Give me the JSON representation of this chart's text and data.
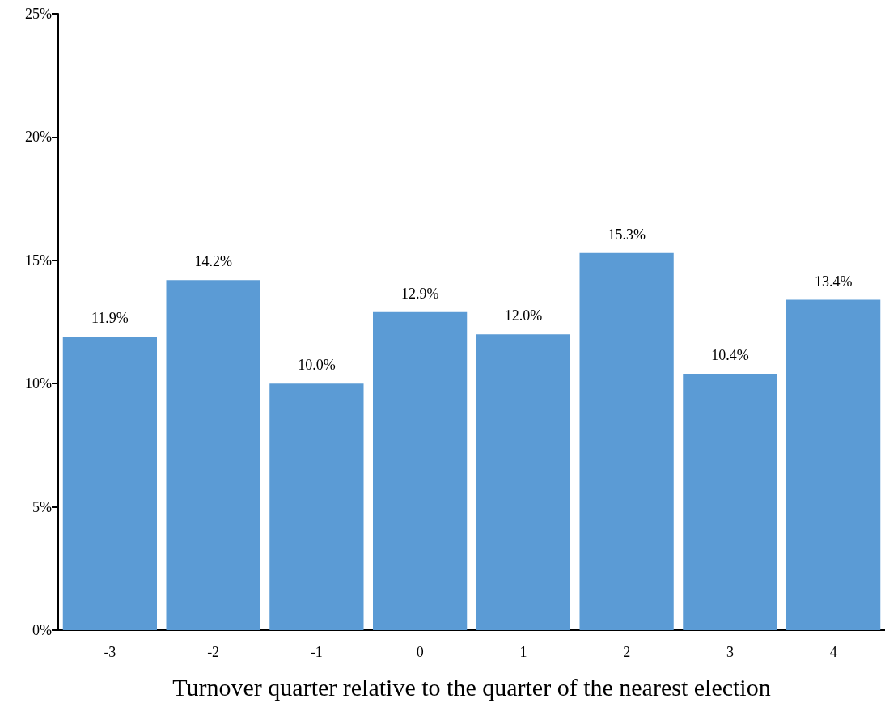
{
  "chart_data": {
    "type": "bar",
    "xlabel": "Turnover quarter relative to the quarter of the nearest election",
    "categories": [
      "-3",
      "-2",
      "-1",
      "0",
      "1",
      "2",
      "3",
      "4"
    ],
    "values": [
      11.9,
      14.2,
      10.0,
      12.9,
      12.0,
      15.3,
      10.4,
      13.4
    ],
    "value_labels": [
      "11.9%",
      "14.2%",
      "10.0%",
      "12.9%",
      "12.0%",
      "15.3%",
      "10.4%",
      "13.4%"
    ],
    "color": "#5b9bd5",
    "ylim": [
      0,
      25
    ],
    "yticks": [
      {
        "value": 0,
        "label": "0%"
      },
      {
        "value": 5,
        "label": "5%"
      },
      {
        "value": 10,
        "label": "10%"
      },
      {
        "value": 15,
        "label": "15%"
      },
      {
        "value": 20,
        "label": "20%"
      },
      {
        "value": 25,
        "label": "25%"
      }
    ],
    "grid": false
  }
}
